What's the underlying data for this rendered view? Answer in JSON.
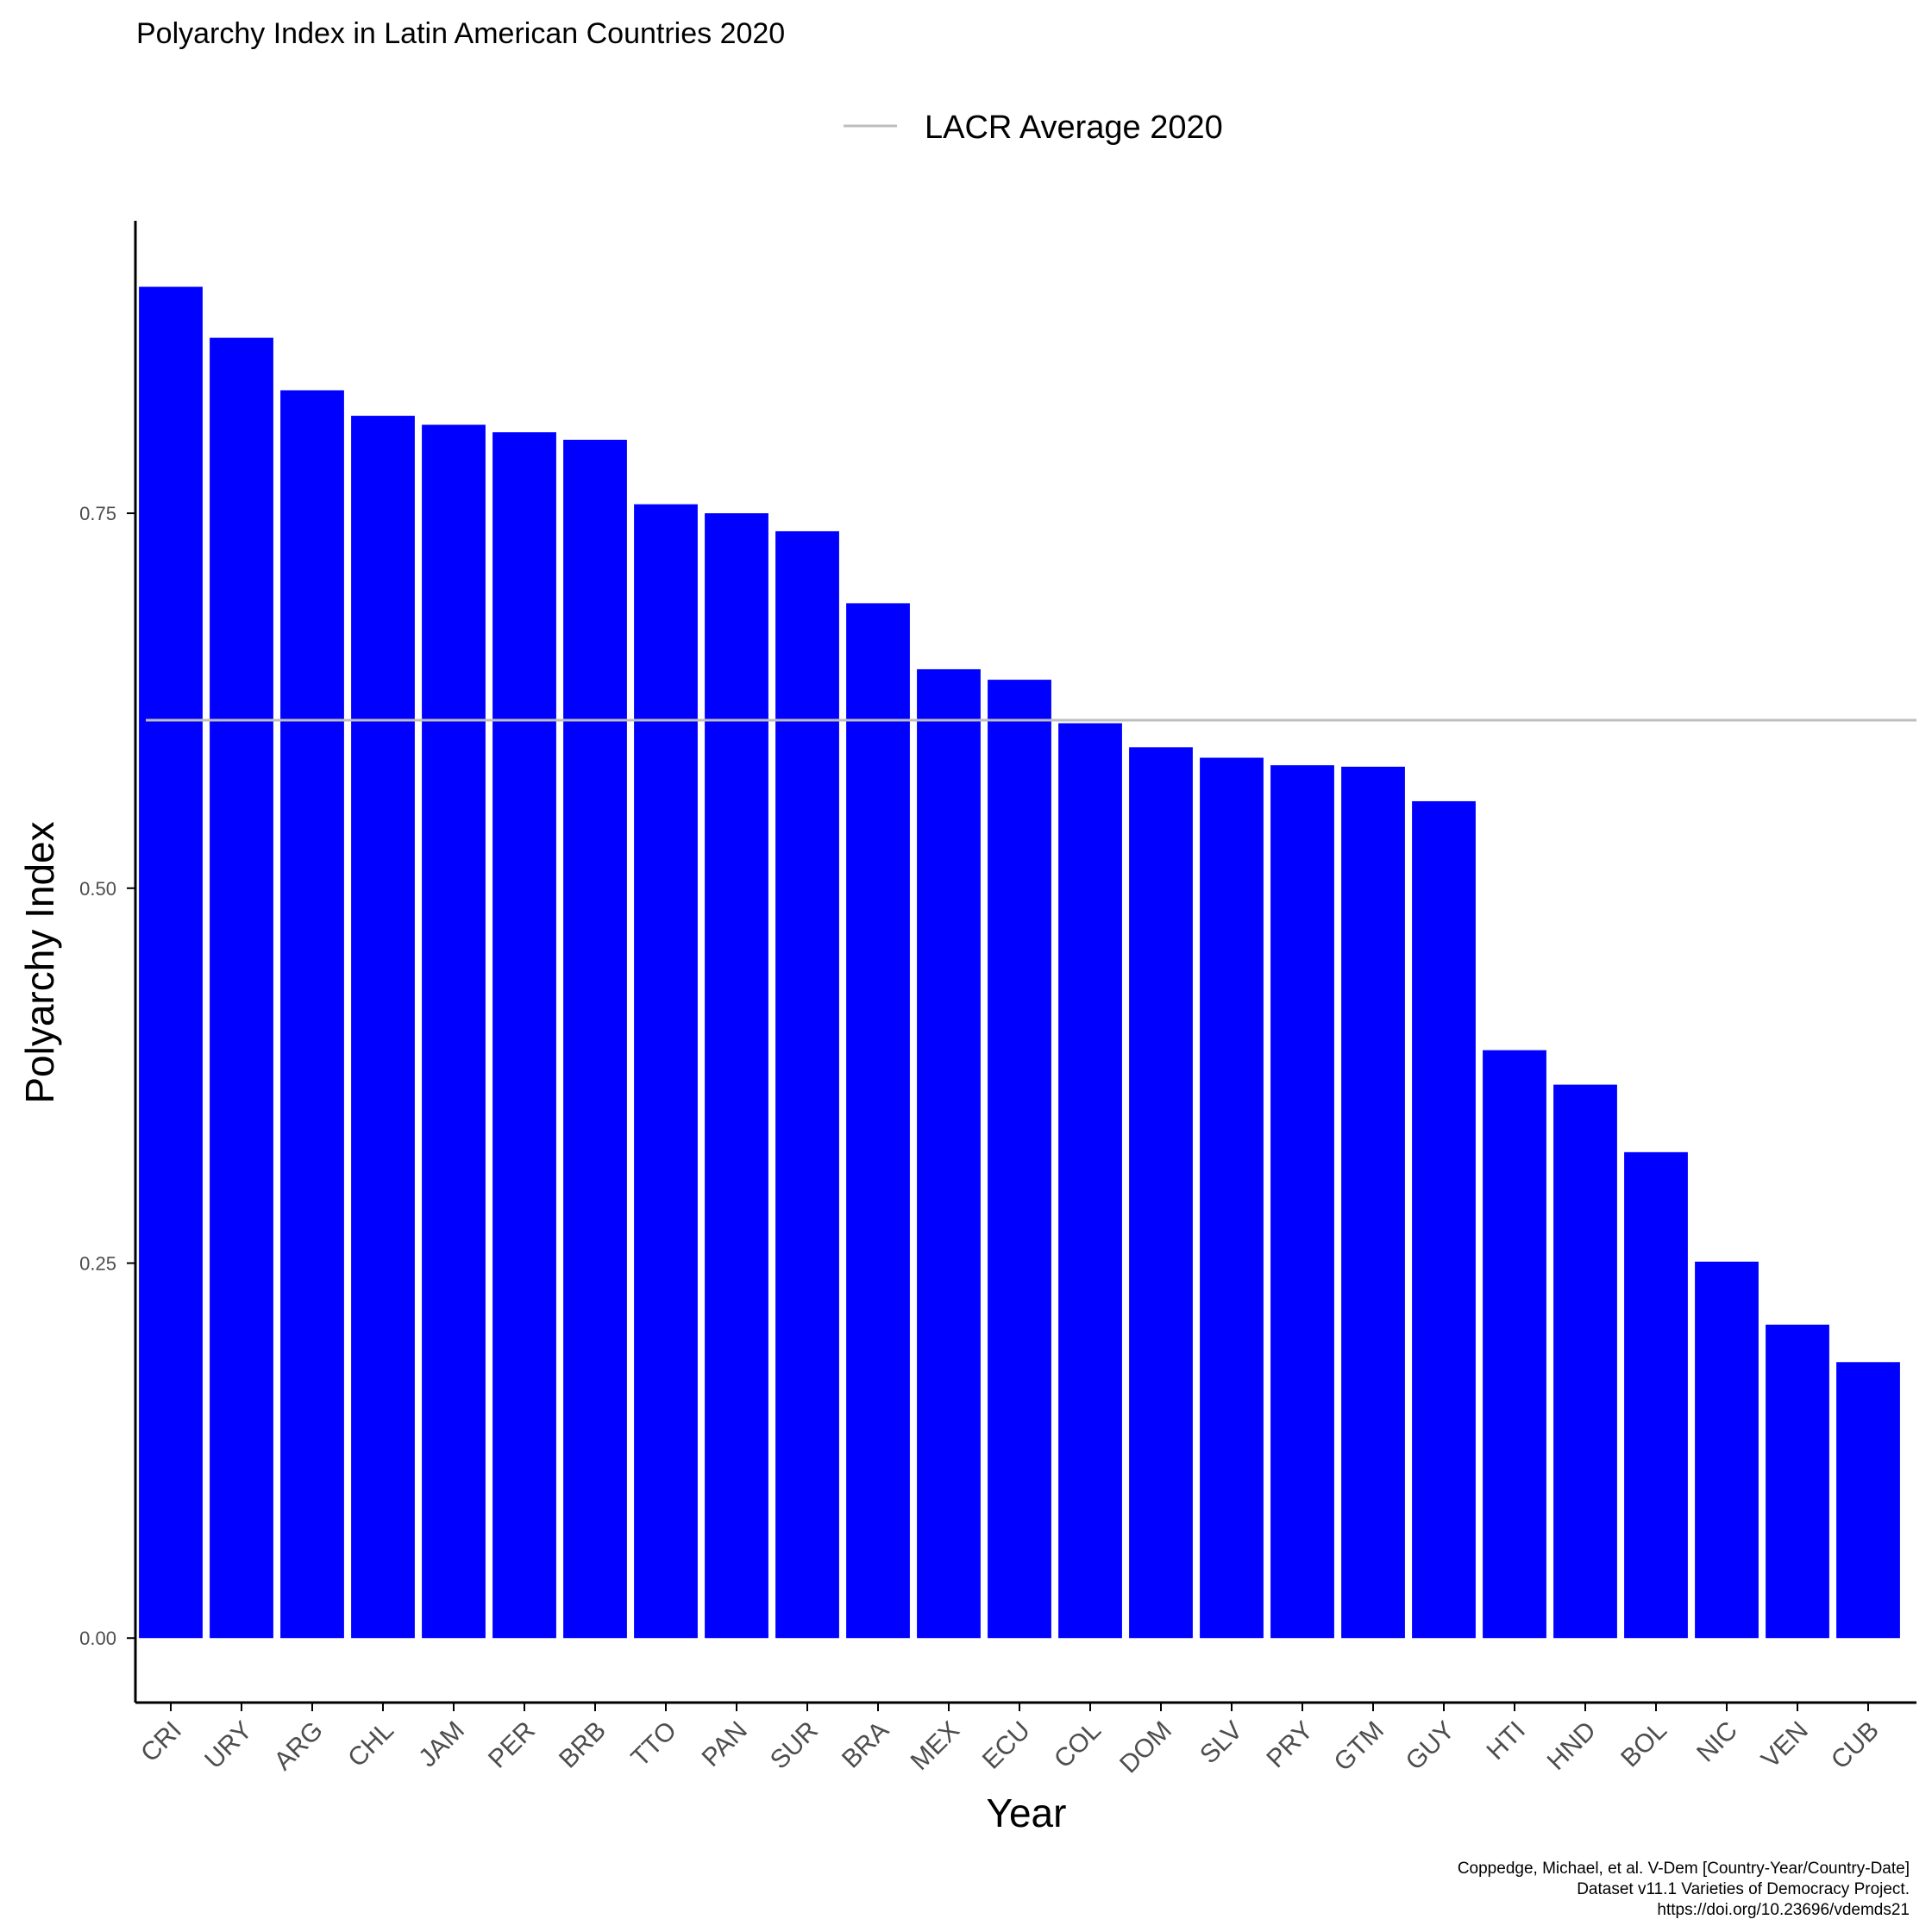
{
  "chart_data": {
    "type": "bar",
    "title": "Polyarchy Index in Latin American Countries 2020",
    "xlabel": "Year",
    "ylabel": "Polyarchy Index",
    "categories": [
      "CRI",
      "URY",
      "ARG",
      "CHL",
      "JAM",
      "PER",
      "BRB",
      "TTO",
      "PAN",
      "SUR",
      "BRA",
      "MEX",
      "ECU",
      "COL",
      "DOM",
      "SLV",
      "PRY",
      "GTM",
      "GUY",
      "HTI",
      "HND",
      "BOL",
      "NIC",
      "VEN",
      "CUB"
    ],
    "values": [
      0.901,
      0.867,
      0.832,
      0.815,
      0.809,
      0.804,
      0.799,
      0.756,
      0.75,
      0.738,
      0.69,
      0.646,
      0.639,
      0.61,
      0.594,
      0.587,
      0.582,
      0.581,
      0.558,
      0.392,
      0.369,
      0.324,
      0.251,
      0.209,
      0.184
    ],
    "reference_line": {
      "name": "LACR Average 2020",
      "value": 0.612,
      "color": "#bebebe"
    },
    "yticks": [
      0,
      0.25,
      0.5,
      0.75
    ],
    "ytick_labels": [
      "0.00",
      "0.25",
      "0.50",
      "0.75"
    ],
    "ylim": [
      -0.043,
      0.945
    ],
    "bar_color": "#0000ff",
    "grid": false,
    "legend_position": "top",
    "caption": [
      "Coppedge, Michael, et al. V-Dem [Country-Year/Country-Date]",
      "Dataset v11.1 Varieties of Democracy Project.",
      "https://doi.org/10.23696/vdemds21"
    ]
  }
}
